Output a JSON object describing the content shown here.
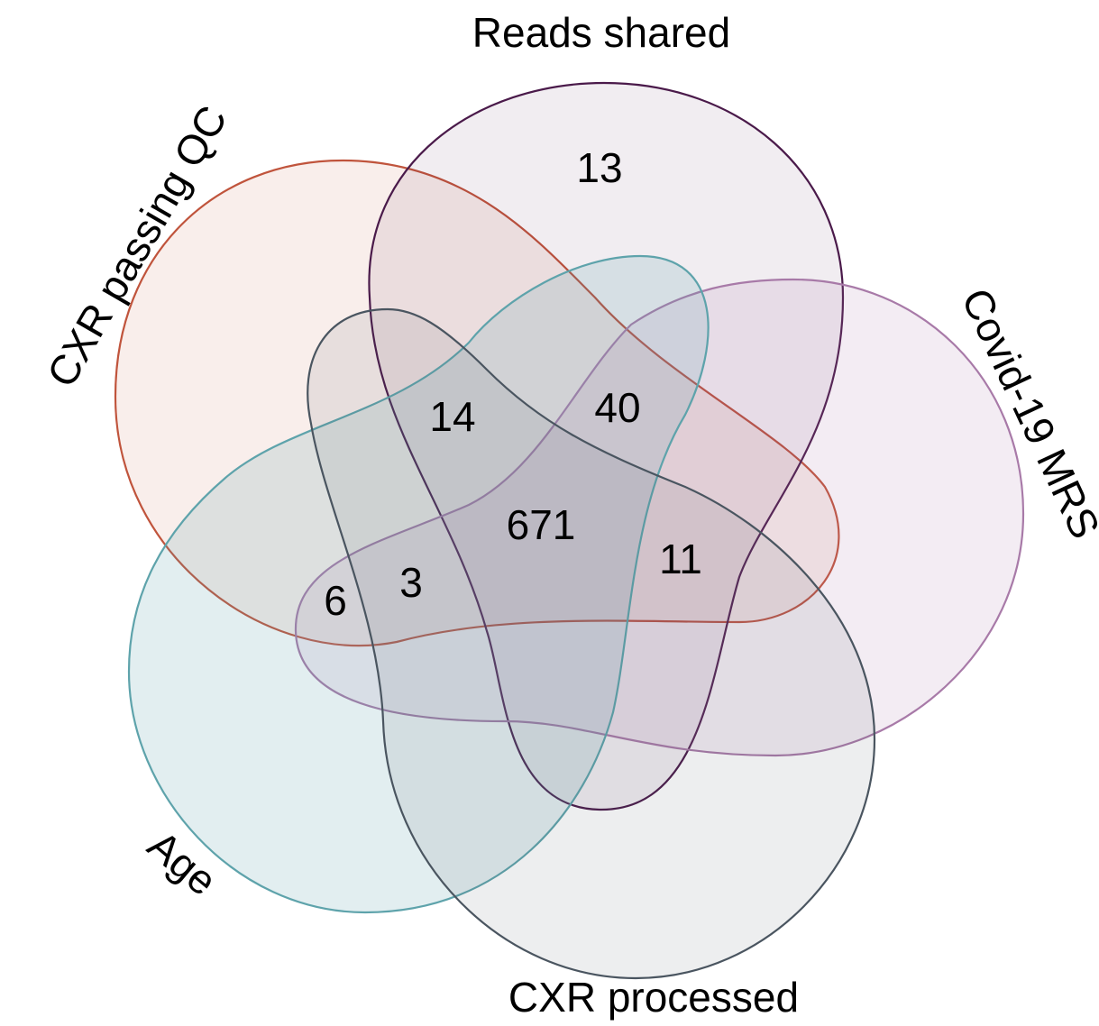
{
  "sets": [
    {
      "label": "Reads shared"
    },
    {
      "label": "CXR passing QC"
    },
    {
      "label": "Covid-19 MRS"
    },
    {
      "label": "Age"
    },
    {
      "label": "CXR processed"
    }
  ],
  "regions": [
    {
      "count": 13
    },
    {
      "count": 14
    },
    {
      "count": 40
    },
    {
      "count": 671
    },
    {
      "count": 11
    },
    {
      "count": 3
    },
    {
      "count": 6
    }
  ]
}
